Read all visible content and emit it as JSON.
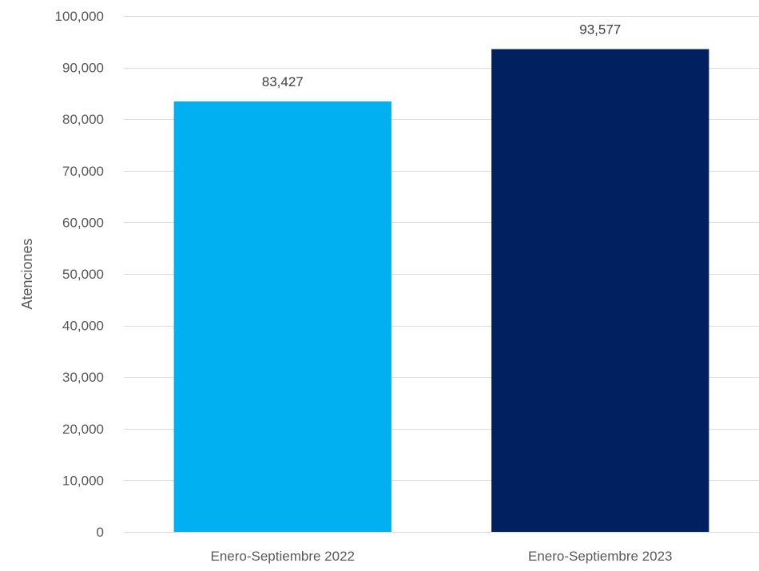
{
  "chart_data": {
    "type": "bar",
    "title": "",
    "xlabel": "",
    "ylabel": "Atenciones",
    "categories": [
      "Enero-Septiembre 2022",
      "Enero-Septiembre 2023"
    ],
    "values": [
      83427,
      93577
    ],
    "value_labels": [
      "83,427",
      "93,577"
    ],
    "bar_colors": [
      "#00b0f0",
      "#002060"
    ],
    "ylim": [
      0,
      100000
    ],
    "yticks": [
      0,
      10000,
      20000,
      30000,
      40000,
      50000,
      60000,
      70000,
      80000,
      90000,
      100000
    ],
    "ytick_labels": [
      "0",
      "10,000",
      "20,000",
      "30,000",
      "40,000",
      "50,000",
      "60,000",
      "70,000",
      "80,000",
      "90,000",
      "100,000"
    ],
    "grid": true,
    "legend": "none"
  }
}
